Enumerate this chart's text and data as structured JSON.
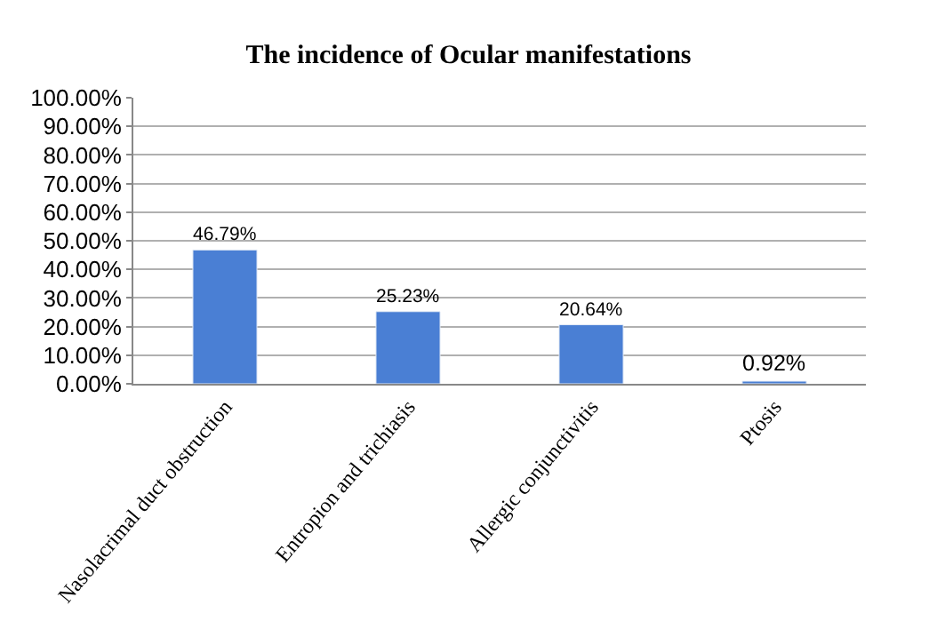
{
  "chart_data": {
    "type": "bar",
    "title": "The incidence of Ocular manifestations",
    "categories": [
      "Nasolacrimal duct obstruction",
      "Entropion and trichiasis",
      "Allergic conjunctivitis",
      "Ptosis"
    ],
    "values": [
      46.79,
      25.23,
      20.64,
      0.92
    ],
    "value_labels": [
      "46.79%",
      "25.23%",
      "20.64%",
      "0.92%"
    ],
    "color": "#4a7fd4",
    "ylim": [
      0,
      100
    ],
    "yticks": [
      {
        "value": 0,
        "label": "0.00%"
      },
      {
        "value": 10,
        "label": "10.00%"
      },
      {
        "value": 20,
        "label": "20.00%"
      },
      {
        "value": 30,
        "label": "30.00%"
      },
      {
        "value": 40,
        "label": "40.00%"
      },
      {
        "value": 50,
        "label": "50.00%"
      },
      {
        "value": 60,
        "label": "60.00%"
      },
      {
        "value": 70,
        "label": "70.00%"
      },
      {
        "value": 80,
        "label": "80.00%"
      },
      {
        "value": 90,
        "label": "90.00%"
      },
      {
        "value": 100,
        "label": "100.00%"
      }
    ],
    "grid": "y"
  }
}
